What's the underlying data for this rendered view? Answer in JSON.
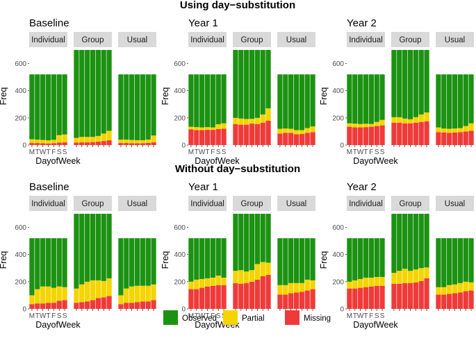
{
  "chart_data": {
    "type": "bar",
    "stacked": true,
    "section_titles": [
      "Using day−substitution",
      "Without day−substitution"
    ],
    "x_categories": [
      "M",
      "T",
      "W",
      "T",
      "F",
      "S",
      "S"
    ],
    "xlabel": "DayofWeek",
    "ylabel": "Freq",
    "ylim": [
      0,
      720
    ],
    "y_ticks": [
      0,
      200,
      400,
      600
    ],
    "colors": {
      "Observed": "#1c9212",
      "Partial": "#f5d400",
      "Missing": "#f03a3a"
    },
    "legend": [
      "Observed",
      "Partial",
      "Missing"
    ],
    "panels": [
      {
        "section": 0,
        "title": "Baseline",
        "facets": [
          {
            "name": "Individual",
            "total": 520,
            "missing": [
              15,
              15,
              13,
              12,
              14,
              18,
              20
            ],
            "partial": [
              28,
              25,
              25,
              23,
              25,
              55,
              58
            ]
          },
          {
            "name": "Group",
            "total": 700,
            "missing": [
              18,
              20,
              20,
              22,
              25,
              30,
              35
            ],
            "partial": [
              35,
              40,
              40,
              38,
              42,
              55,
              70
            ]
          },
          {
            "name": "Usual",
            "total": 520,
            "missing": [
              15,
              15,
              14,
              13,
              14,
              16,
              20
            ],
            "partial": [
              25,
              25,
              24,
              23,
              22,
              25,
              50
            ]
          }
        ]
      },
      {
        "section": 0,
        "title": "Year 1",
        "facets": [
          {
            "name": "Individual",
            "total": 520,
            "missing": [
              115,
              110,
              110,
              112,
              112,
              118,
              120
            ],
            "partial": [
              20,
              22,
              20,
              20,
              18,
              35,
              40
            ]
          },
          {
            "name": "Group",
            "total": 700,
            "missing": [
              155,
              150,
              150,
              158,
              155,
              165,
              180
            ],
            "partial": [
              45,
              45,
              42,
              35,
              45,
              60,
              90
            ]
          },
          {
            "name": "Usual",
            "total": 520,
            "missing": [
              85,
              90,
              90,
              80,
              82,
              90,
              95
            ],
            "partial": [
              35,
              32,
              30,
              30,
              28,
              35,
              42
            ]
          }
        ]
      },
      {
        "section": 0,
        "title": "Year 2",
        "facets": [
          {
            "name": "Individual",
            "total": 520,
            "missing": [
              135,
              130,
              130,
              132,
              135,
              140,
              145
            ],
            "partial": [
              25,
              28,
              25,
              25,
              20,
              30,
              40
            ]
          },
          {
            "name": "Group",
            "total": 700,
            "missing": [
              165,
              165,
              160,
              160,
              165,
              170,
              175
            ],
            "partial": [
              40,
              40,
              35,
              30,
              40,
              55,
              65
            ]
          },
          {
            "name": "Usual",
            "total": 520,
            "missing": [
              95,
              92,
              90,
              92,
              95,
              100,
              105
            ],
            "partial": [
              35,
              30,
              30,
              30,
              30,
              40,
              55
            ]
          }
        ]
      },
      {
        "section": 1,
        "title": "Baseline",
        "facets": [
          {
            "name": "Individual",
            "total": 520,
            "missing": [
              35,
              40,
              40,
              45,
              45,
              60,
              65
            ],
            "partial": [
              65,
              105,
              125,
              120,
              110,
              105,
              95
            ]
          },
          {
            "name": "Group",
            "total": 700,
            "missing": [
              45,
              50,
              55,
              65,
              80,
              85,
              95
            ],
            "partial": [
              105,
              130,
              145,
              145,
              130,
              120,
              130
            ]
          },
          {
            "name": "Usual",
            "total": 520,
            "missing": [
              35,
              45,
              45,
              50,
              55,
              55,
              65
            ],
            "partial": [
              65,
              105,
              120,
              120,
              115,
              115,
              115
            ]
          }
        ]
      },
      {
        "section": 1,
        "title": "Year 1",
        "facets": [
          {
            "name": "Individual",
            "total": 520,
            "missing": [
              145,
              145,
              155,
              165,
              170,
              175,
              175
            ],
            "partial": [
              55,
              70,
              65,
              60,
              60,
              70,
              55
            ]
          },
          {
            "name": "Group",
            "total": 700,
            "missing": [
              190,
              185,
              190,
              200,
              215,
              240,
              250
            ],
            "partial": [
              90,
              100,
              85,
              85,
              115,
              105,
              90
            ]
          },
          {
            "name": "Usual",
            "total": 520,
            "missing": [
              105,
              105,
              115,
              120,
              125,
              135,
              145
            ],
            "partial": [
              70,
              70,
              75,
              70,
              65,
              80,
              65
            ]
          }
        ]
      },
      {
        "section": 1,
        "title": "Year 2",
        "facets": [
          {
            "name": "Individual",
            "total": 520,
            "missing": [
              150,
              150,
              155,
              160,
              165,
              170,
              170
            ],
            "partial": [
              50,
              60,
              65,
              70,
              65,
              65,
              65
            ]
          },
          {
            "name": "Group",
            "total": 700,
            "missing": [
              185,
              185,
              190,
              190,
              195,
              205,
              225
            ],
            "partial": [
              80,
              95,
              105,
              90,
              95,
              95,
              80
            ]
          },
          {
            "name": "Usual",
            "total": 520,
            "missing": [
              105,
              105,
              110,
              115,
              120,
              130,
              135
            ],
            "partial": [
              55,
              55,
              65,
              65,
              70,
              70,
              60
            ]
          }
        ]
      }
    ]
  }
}
